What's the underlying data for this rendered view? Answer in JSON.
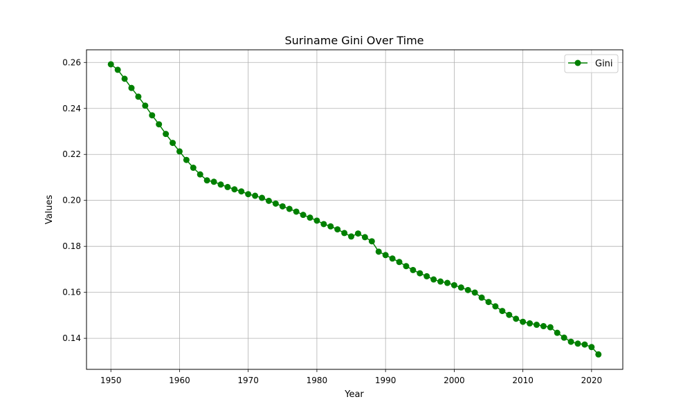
{
  "chart_data": {
    "type": "line",
    "title": "Suriname Gini Over Time",
    "xlabel": "Year",
    "ylabel": "Values",
    "xlim": [
      1946.45,
      2024.55
    ],
    "ylim": [
      0.1265,
      0.2655
    ],
    "xticks": [
      1950,
      1960,
      1970,
      1980,
      1990,
      2000,
      2010,
      2020
    ],
    "yticks": [
      0.14,
      0.16,
      0.18,
      0.2,
      0.22,
      0.24,
      0.26
    ],
    "ytick_labels": [
      "0.14",
      "0.16",
      "0.18",
      "0.20",
      "0.22",
      "0.24",
      "0.26"
    ],
    "grid": true,
    "legend_position": "top-right",
    "series": [
      {
        "name": "Gini",
        "color": "#008000",
        "marker": "circle",
        "x": [
          1950,
          1951,
          1952,
          1953,
          1954,
          1955,
          1956,
          1957,
          1958,
          1959,
          1960,
          1961,
          1962,
          1963,
          1964,
          1965,
          1966,
          1967,
          1968,
          1969,
          1970,
          1971,
          1972,
          1973,
          1974,
          1975,
          1976,
          1977,
          1978,
          1979,
          1980,
          1981,
          1982,
          1983,
          1984,
          1985,
          1986,
          1987,
          1988,
          1989,
          1990,
          1991,
          1992,
          1993,
          1994,
          1995,
          1996,
          1997,
          1998,
          1999,
          2000,
          2001,
          2002,
          2003,
          2004,
          2005,
          2006,
          2007,
          2008,
          2009,
          2010,
          2011,
          2012,
          2013,
          2014,
          2015,
          2016,
          2017,
          2018,
          2019,
          2020,
          2021
        ],
        "values": [
          0.2592,
          0.2568,
          0.2529,
          0.2489,
          0.2451,
          0.2412,
          0.237,
          0.2331,
          0.2289,
          0.225,
          0.2213,
          0.2176,
          0.2142,
          0.2113,
          0.2087,
          0.2081,
          0.2069,
          0.2058,
          0.2048,
          0.2039,
          0.2027,
          0.202,
          0.2011,
          0.1998,
          0.1986,
          0.1974,
          0.1963,
          0.1951,
          0.1937,
          0.1925,
          0.1912,
          0.1897,
          0.1887,
          0.1874,
          0.1858,
          0.1843,
          0.1856,
          0.184,
          0.1822,
          0.1777,
          0.1762,
          0.1747,
          0.1732,
          0.1714,
          0.1697,
          0.1683,
          0.167,
          0.1656,
          0.1647,
          0.1641,
          0.1631,
          0.1621,
          0.161,
          0.1599,
          0.1577,
          0.1558,
          0.1539,
          0.1519,
          0.1502,
          0.1485,
          0.1472,
          0.1465,
          0.1459,
          0.1453,
          0.1448,
          0.1424,
          0.1403,
          0.1385,
          0.1377,
          0.1373,
          0.1362,
          0.133
        ]
      }
    ]
  }
}
